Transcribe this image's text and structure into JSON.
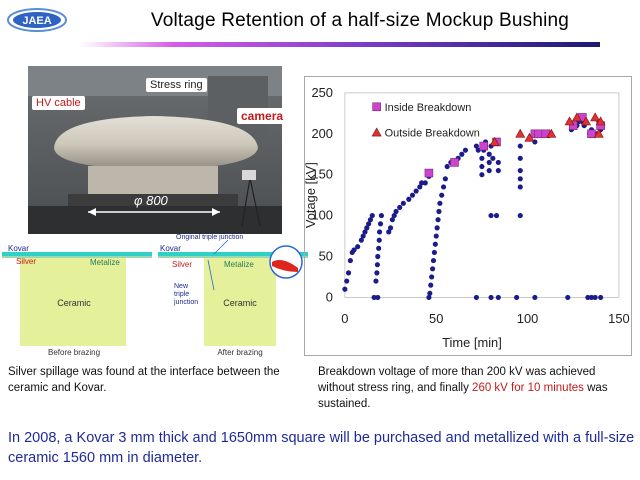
{
  "logo": {
    "text": "JAEA"
  },
  "title": "Voltage Retention of a half-size Mockup Bushing",
  "photo": {
    "labels": {
      "hv_cable": "HV cable",
      "stress_ring": "Stress ring",
      "camera": "camera",
      "diameter": "φ 800"
    }
  },
  "diagrams": {
    "before": {
      "kovar": "Kovar",
      "silver": "Silver",
      "metalize": "Metalize",
      "ceramic": "Ceramic",
      "caption": "Before brazing"
    },
    "after": {
      "kovar": "Kovar",
      "silver": "Silver",
      "metalize": "Metalize",
      "ceramic": "Ceramic",
      "caption": "After brazing",
      "original_triple": "Original triple junction",
      "new_triple_1": "New",
      "new_triple_2": "triple",
      "new_triple_3": "junction"
    }
  },
  "captions": {
    "left": "Silver spillage was found at the interface between the ceramic and Kovar.",
    "right_1": "Breakdown  voltage of more than 200 kV was achieved without stress ring,  and finally ",
    "right_highlight": "260 kV for 10 minutes",
    "right_2": " was sustained."
  },
  "bottom_text": "In 2008, a Kovar 3 mm thick and 1650mm square will be purchased and metallized with a full-size ceramic 1560 mm in diameter.",
  "colors": {
    "series_main": "#1b1b8c",
    "inside": "#cc44cc",
    "outside": "#e03030",
    "red_text": "#c21a1a",
    "blue_text": "#1f2a9a"
  },
  "chart_data": {
    "type": "scatter",
    "title": "",
    "xlabel": "Time [min]",
    "ylabel": "Votage [kV]",
    "xlim": [
      0,
      150
    ],
    "ylim": [
      0,
      250
    ],
    "xticks": [
      0,
      50,
      100,
      150
    ],
    "yticks": [
      0,
      50,
      100,
      150,
      200,
      250
    ],
    "legend_position": "top",
    "series": [
      {
        "name": "",
        "marker": "circle",
        "points": [
          [
            0,
            10
          ],
          [
            1,
            20
          ],
          [
            2,
            30
          ],
          [
            3,
            45
          ],
          [
            4,
            55
          ],
          [
            5,
            58
          ],
          [
            7,
            62
          ],
          [
            9,
            70
          ],
          [
            10,
            75
          ],
          [
            11,
            80
          ],
          [
            12,
            85
          ],
          [
            13,
            90
          ],
          [
            14,
            95
          ],
          [
            15,
            100
          ],
          [
            16,
            0
          ],
          [
            18,
            0
          ],
          [
            17,
            20
          ],
          [
            17.5,
            30
          ],
          [
            17.8,
            40
          ],
          [
            18,
            50
          ],
          [
            18.5,
            60
          ],
          [
            18.8,
            70
          ],
          [
            19,
            80
          ],
          [
            19.5,
            90
          ],
          [
            20,
            100
          ],
          [
            24,
            80
          ],
          [
            25,
            85
          ],
          [
            26,
            95
          ],
          [
            27,
            100
          ],
          [
            28,
            105
          ],
          [
            30,
            110
          ],
          [
            32,
            115
          ],
          [
            35,
            120
          ],
          [
            37,
            125
          ],
          [
            39,
            130
          ],
          [
            41,
            135
          ],
          [
            42,
            140
          ],
          [
            44,
            140
          ],
          [
            46,
            148
          ],
          [
            46,
            0
          ],
          [
            46.5,
            5
          ],
          [
            47,
            15
          ],
          [
            47.5,
            25
          ],
          [
            48,
            35
          ],
          [
            48.5,
            45
          ],
          [
            49,
            55
          ],
          [
            49.5,
            65
          ],
          [
            50,
            75
          ],
          [
            50.5,
            85
          ],
          [
            51,
            95
          ],
          [
            51.5,
            105
          ],
          [
            52,
            115
          ],
          [
            53,
            125
          ],
          [
            54,
            135
          ],
          [
            55,
            145
          ],
          [
            56,
            160
          ],
          [
            58,
            165
          ],
          [
            62,
            170
          ],
          [
            64,
            175
          ],
          [
            66,
            180
          ],
          [
            72,
            185
          ],
          [
            73,
            180
          ],
          [
            72,
            0
          ],
          [
            75,
            150
          ],
          [
            75,
            160
          ],
          [
            75,
            170
          ],
          [
            76,
            180
          ],
          [
            77,
            190
          ],
          [
            79,
            155
          ],
          [
            79,
            165
          ],
          [
            79,
            175
          ],
          [
            80,
            185
          ],
          [
            80,
            100
          ],
          [
            81,
            170
          ],
          [
            83,
            190
          ],
          [
            83,
            100
          ],
          [
            84,
            155
          ],
          [
            84,
            165
          ],
          [
            80,
            0
          ],
          [
            84,
            0
          ],
          [
            94,
            0
          ],
          [
            96,
            135
          ],
          [
            96,
            145
          ],
          [
            96,
            155
          ],
          [
            96,
            170
          ],
          [
            96,
            185
          ],
          [
            96,
            100
          ],
          [
            104,
            0
          ],
          [
            104,
            190
          ],
          [
            122,
            0
          ],
          [
            124,
            205
          ],
          [
            127,
            210
          ],
          [
            128,
            215
          ],
          [
            130,
            215
          ],
          [
            131,
            210
          ],
          [
            132,
            215
          ],
          [
            133,
            0
          ],
          [
            134,
            200
          ],
          [
            135,
            205
          ],
          [
            135,
            0
          ],
          [
            137,
            0
          ],
          [
            138,
            200
          ],
          [
            139,
            215
          ],
          [
            140,
            205
          ],
          [
            140,
            0
          ]
        ]
      },
      {
        "name": "Inside Breakdown",
        "marker": "square",
        "points": [
          [
            46,
            152
          ],
          [
            60,
            165
          ],
          [
            76,
            185
          ],
          [
            83,
            190
          ],
          [
            104,
            200
          ],
          [
            106,
            200
          ],
          [
            110,
            200
          ],
          [
            125,
            210
          ],
          [
            130,
            220
          ],
          [
            135,
            200
          ],
          [
            140,
            210
          ]
        ]
      },
      {
        "name": "Outside Breakdown",
        "marker": "triangle",
        "points": [
          [
            82,
            190
          ],
          [
            96,
            200
          ],
          [
            101,
            195
          ],
          [
            113,
            200
          ],
          [
            123,
            215
          ],
          [
            127,
            220
          ],
          [
            132,
            215
          ],
          [
            137,
            220
          ],
          [
            139,
            200
          ],
          [
            140,
            215
          ]
        ]
      }
    ]
  }
}
